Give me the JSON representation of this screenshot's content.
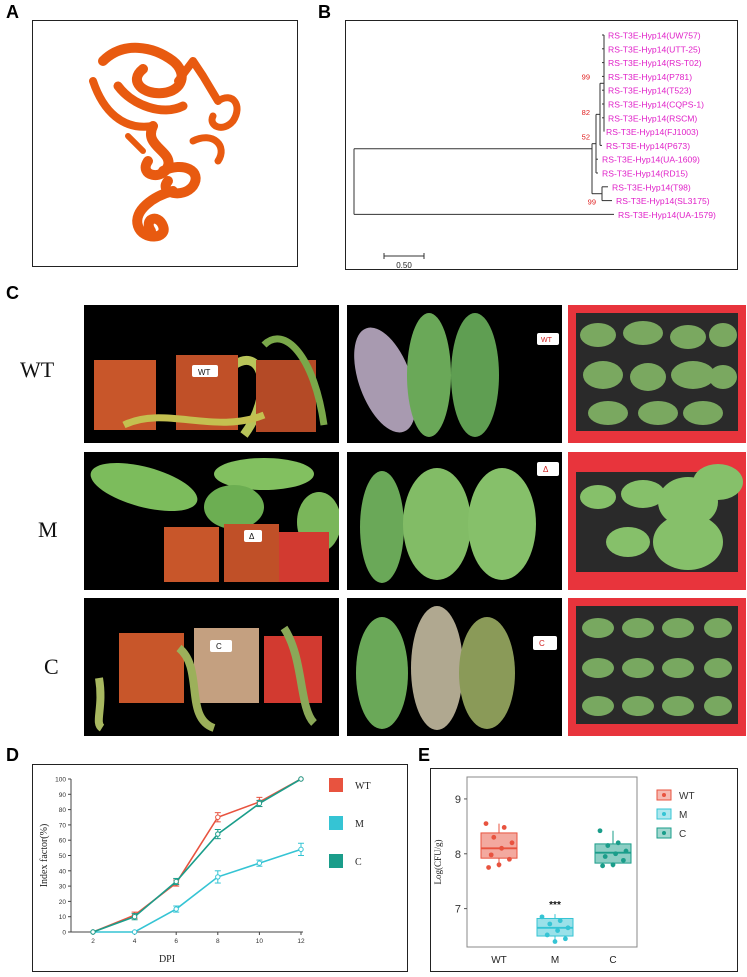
{
  "panels": {
    "A": "A",
    "B": "B",
    "C": "C",
    "D": "D",
    "E": "E"
  },
  "tree": {
    "taxa": [
      "RS-T3E-Hyp14(UW757)",
      "RS-T3E-Hyp14(UTT-25)",
      "RS-T3E-Hyp14(RS-T02)",
      "RS-T3E-Hyp14(P781)",
      "RS-T3E-Hyp14(T523)",
      "RS-T3E-Hyp14(CQPS-1)",
      "RS-T3E-Hyp14(RSCM)",
      "RS-T3E-Hyp14(FJ1003)",
      "RS-T3E-Hyp14(P673)",
      "RS-T3E-Hyp14(UA-1609)",
      "RS-T3E-Hyp14(RD15)",
      "RS-T3E-Hyp14(T98)",
      "RS-T3E-Hyp14(SL3175)",
      "RS-T3E-Hyp14(UA-1579)"
    ],
    "bootstraps": [
      "99",
      "82",
      "52",
      "99"
    ],
    "scale_label": "0.50",
    "label_color": "#e020c8",
    "bootstrap_color": "#e02020"
  },
  "photos": {
    "row_labels": [
      "WT",
      "M",
      "C"
    ],
    "pot_tags": [
      "WT",
      "Δ",
      "C"
    ]
  },
  "chart_data": [
    {
      "type": "line",
      "panel": "D",
      "x": [
        2,
        4,
        6,
        8,
        10,
        12
      ],
      "xlabel": "DPI",
      "ylabel": "Index factor(%)",
      "xticks": [
        "2",
        "4",
        "6",
        "8",
        "10",
        "12"
      ],
      "yticks": [
        "0",
        "10",
        "20",
        "30",
        "40",
        "50",
        "60",
        "70",
        "80",
        "90",
        "100"
      ],
      "ylim": [
        0,
        100
      ],
      "series": [
        {
          "name": "WT",
          "color": "#e8533f",
          "values": [
            0,
            11,
            32,
            75,
            85,
            100
          ],
          "errors": [
            0,
            2,
            2,
            3,
            3,
            0
          ]
        },
        {
          "name": "M",
          "color": "#35c4d4",
          "values": [
            0,
            0,
            15,
            36,
            45,
            54
          ],
          "errors": [
            0,
            0,
            2,
            4,
            2,
            4
          ]
        },
        {
          "name": "C",
          "color": "#1a9d8a",
          "values": [
            0,
            10,
            33,
            64,
            84,
            100
          ],
          "errors": [
            0,
            2,
            2,
            3,
            2,
            0
          ]
        }
      ]
    },
    {
      "type": "box",
      "panel": "E",
      "categories": [
        "WT",
        "M",
        "C"
      ],
      "ylabel": "Log(CFU/g)",
      "yticks": [
        "7",
        "8",
        "9"
      ],
      "ylim": [
        6.3,
        9.4
      ],
      "significance": "***",
      "boxes": [
        {
          "name": "WT",
          "color": "#e8533f",
          "q1": 7.92,
          "median": 8.1,
          "q3": 8.38,
          "whisker_low": 7.75,
          "whisker_high": 8.55,
          "points": [
            8.55,
            8.48,
            8.3,
            8.2,
            8.1,
            7.98,
            7.9,
            7.8,
            7.75
          ]
        },
        {
          "name": "M",
          "color": "#35c4d4",
          "q1": 6.5,
          "median": 6.65,
          "q3": 6.82,
          "whisker_low": 6.38,
          "whisker_high": 6.9,
          "points": [
            6.85,
            6.78,
            6.72,
            6.65,
            6.6,
            6.52,
            6.45,
            6.4
          ]
        },
        {
          "name": "C",
          "color": "#1a9d8a",
          "q1": 7.83,
          "median": 8.02,
          "q3": 8.18,
          "whisker_low": 7.75,
          "whisker_high": 8.42,
          "points": [
            8.42,
            8.2,
            8.15,
            8.05,
            8.0,
            7.95,
            7.88,
            7.8,
            7.78
          ]
        }
      ]
    }
  ]
}
